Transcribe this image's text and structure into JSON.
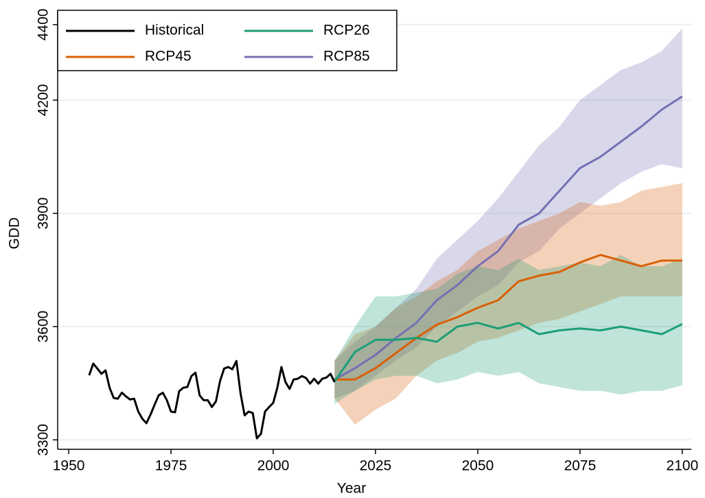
{
  "chart_data": {
    "type": "line",
    "xlabel": "Year",
    "ylabel": "GDD",
    "xlim": [
      1947.3,
      2102.2
    ],
    "ylim": [
      3275,
      4438
    ],
    "xticks": [
      1950,
      1975,
      2000,
      2025,
      2050,
      2075,
      2100
    ],
    "yticks": [
      3300,
      3600,
      3900,
      4200,
      4400
    ],
    "grid": true,
    "legend": "upper left",
    "series": [
      {
        "name": "Historical",
        "color": "#000000",
        "x": [
          1955,
          1956,
          1957,
          1958,
          1959,
          1960,
          1961,
          1962,
          1963,
          1964,
          1965,
          1966,
          1967,
          1968,
          1969,
          1970,
          1971,
          1972,
          1973,
          1974,
          1975,
          1976,
          1977,
          1978,
          1979,
          1980,
          1981,
          1982,
          1983,
          1984,
          1985,
          1986,
          1987,
          1988,
          1989,
          1990,
          1991,
          1992,
          1993,
          1994,
          1995,
          1996,
          1997,
          1998,
          1999,
          2000,
          2001,
          2002,
          2003,
          2004,
          2005,
          2006,
          2007,
          2008,
          2009,
          2010,
          2011,
          2012,
          2013,
          2014,
          2015
        ],
        "values": [
          3471,
          3502,
          3489,
          3475,
          3484,
          3438,
          3411,
          3409,
          3425,
          3415,
          3407,
          3409,
          3375,
          3356,
          3344,
          3367,
          3393,
          3418,
          3425,
          3405,
          3375,
          3373,
          3429,
          3438,
          3440,
          3469,
          3478,
          3418,
          3405,
          3405,
          3387,
          3402,
          3456,
          3489,
          3493,
          3487,
          3509,
          3424,
          3365,
          3375,
          3371,
          3304,
          3316,
          3375,
          3387,
          3398,
          3438,
          3493,
          3453,
          3435,
          3460,
          3462,
          3469,
          3464,
          3449,
          3462,
          3449,
          3462,
          3465,
          3475,
          3453
        ]
      },
      {
        "name": "RCP26",
        "color": "#1b9e77",
        "x": [
          2015,
          2020,
          2025,
          2030,
          2035,
          2040,
          2045,
          2050,
          2055,
          2060,
          2065,
          2070,
          2075,
          2080,
          2085,
          2090,
          2095,
          2100
        ],
        "values": [
          3455,
          3533,
          3565,
          3565,
          3570,
          3560,
          3600,
          3610,
          3595,
          3610,
          3580,
          3590,
          3595,
          3590,
          3600,
          3590,
          3580,
          3607
        ],
        "lower": [
          3395,
          3430,
          3460,
          3470,
          3470,
          3450,
          3460,
          3480,
          3470,
          3480,
          3450,
          3440,
          3430,
          3430,
          3420,
          3430,
          3430,
          3445
        ],
        "upper": [
          3510,
          3600,
          3680,
          3680,
          3690,
          3700,
          3740,
          3760,
          3750,
          3780,
          3750,
          3760,
          3770,
          3760,
          3790,
          3760,
          3760,
          3780
        ]
      },
      {
        "name": "RCP45",
        "color": "#d95f02",
        "x": [
          2015,
          2020,
          2025,
          2030,
          2035,
          2040,
          2045,
          2050,
          2055,
          2060,
          2065,
          2070,
          2075,
          2080,
          2085,
          2090,
          2095,
          2100
        ],
        "values": [
          3460,
          3460,
          3490,
          3530,
          3570,
          3605,
          3625,
          3650,
          3670,
          3720,
          3735,
          3745,
          3770,
          3790,
          3775,
          3760,
          3775,
          3775
        ],
        "lower": [
          3410,
          3340,
          3380,
          3410,
          3470,
          3510,
          3530,
          3560,
          3570,
          3590,
          3610,
          3620,
          3640,
          3660,
          3680,
          3680,
          3680,
          3680
        ],
        "upper": [
          3510,
          3580,
          3600,
          3650,
          3680,
          3720,
          3750,
          3800,
          3830,
          3860,
          3880,
          3900,
          3930,
          3920,
          3930,
          3960,
          3970,
          3980
        ]
      },
      {
        "name": "RCP85",
        "color": "#7570b3",
        "x": [
          2015,
          2020,
          2025,
          2030,
          2035,
          2040,
          2045,
          2050,
          2055,
          2060,
          2065,
          2070,
          2075,
          2080,
          2085,
          2090,
          2095,
          2100
        ],
        "values": [
          3460,
          3490,
          3525,
          3570,
          3610,
          3670,
          3710,
          3760,
          3800,
          3870,
          3900,
          3960,
          4020,
          4050,
          4090,
          4130,
          4175,
          4210
        ],
        "lower": [
          3410,
          3430,
          3470,
          3510,
          3545,
          3600,
          3640,
          3680,
          3710,
          3770,
          3800,
          3860,
          3900,
          3940,
          3980,
          4010,
          4030,
          4020
        ],
        "upper": [
          3510,
          3560,
          3600,
          3650,
          3700,
          3780,
          3830,
          3880,
          3940,
          4010,
          4080,
          4130,
          4200,
          4240,
          4280,
          4300,
          4330,
          4390
        ]
      }
    ]
  }
}
